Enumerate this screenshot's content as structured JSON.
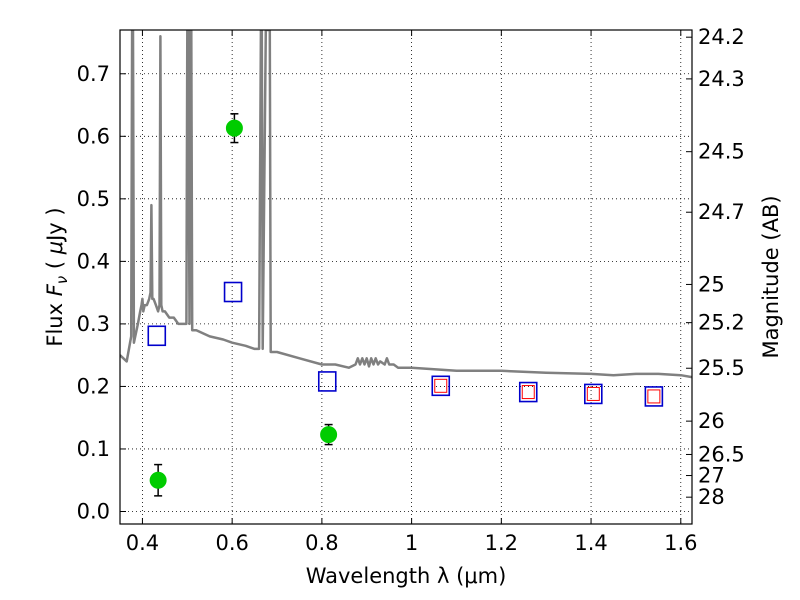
{
  "chart_data": {
    "type": "scatter",
    "title": "",
    "xlabel": "Wavelength  λ (μm)",
    "ylabel_parts": [
      "Flux  ",
      "F",
      "ν",
      "  ( ",
      "μ",
      "Jy )"
    ],
    "y2label": "Magnitude (AB)",
    "xlim": [
      0.35,
      1.625
    ],
    "ylim": [
      -0.02,
      0.77
    ],
    "grid": true,
    "x_ticks": [
      0.4,
      0.6,
      0.8,
      1.0,
      1.2,
      1.4,
      1.6
    ],
    "x_tick_labels": [
      "0.4",
      "0.6",
      "0.8",
      "1",
      "1.2",
      "1.4",
      "1.6"
    ],
    "y_ticks": [
      0.0,
      0.1,
      0.2,
      0.3,
      0.4,
      0.5,
      0.6,
      0.7
    ],
    "y_tick_labels": [
      "0.0",
      "0.1",
      "0.2",
      "0.3",
      "0.4",
      "0.5",
      "0.6",
      "0.7"
    ],
    "mag_ticks": [
      {
        "label": "24.2",
        "flux": 0.7585
      },
      {
        "label": "24.3",
        "flux": 0.6918
      },
      {
        "label": "24.5",
        "flux": 0.5754
      },
      {
        "label": "24.7",
        "flux": 0.4786
      },
      {
        "label": "25",
        "flux": 0.3631
      },
      {
        "label": "25.2",
        "flux": 0.302
      },
      {
        "label": "25.5",
        "flux": 0.2291
      },
      {
        "label": "26",
        "flux": 0.1445
      },
      {
        "label": "26.5",
        "flux": 0.0912
      },
      {
        "label": "27",
        "flux": 0.0575
      },
      {
        "label": "28",
        "flux": 0.0229
      }
    ],
    "series": [
      {
        "kind": "spectrum",
        "color": "#808080",
        "x": [
          0.35,
          0.365,
          0.375,
          0.377,
          0.379,
          0.381,
          0.39,
          0.395,
          0.398,
          0.4,
          0.402,
          0.405,
          0.41,
          0.415,
          0.418,
          0.42,
          0.422,
          0.425,
          0.43,
          0.435,
          0.438,
          0.44,
          0.442,
          0.445,
          0.45,
          0.46,
          0.47,
          0.48,
          0.49,
          0.498,
          0.5,
          0.502,
          0.505,
          0.507,
          0.509,
          0.511,
          0.515,
          0.52,
          0.55,
          0.58,
          0.6,
          0.63,
          0.65,
          0.66,
          0.664,
          0.666,
          0.668,
          0.675,
          0.68,
          0.682,
          0.684,
          0.686,
          0.7,
          0.75,
          0.8,
          0.83,
          0.86,
          0.875,
          0.88,
          0.885,
          0.89,
          0.895,
          0.9,
          0.905,
          0.91,
          0.915,
          0.92,
          0.925,
          0.93,
          0.94,
          0.945,
          0.95,
          0.96,
          0.97,
          0.98,
          0.99,
          1.0,
          1.1,
          1.2,
          1.3,
          1.4,
          1.45,
          1.5,
          1.55,
          1.6,
          1.625
        ],
        "y": [
          0.25,
          0.24,
          0.28,
          0.77,
          0.77,
          0.27,
          0.3,
          0.32,
          0.33,
          0.34,
          0.32,
          0.33,
          0.33,
          0.34,
          0.35,
          0.49,
          0.34,
          0.34,
          0.33,
          0.32,
          0.33,
          0.76,
          0.33,
          0.32,
          0.32,
          0.31,
          0.31,
          0.3,
          0.3,
          0.3,
          0.77,
          0.77,
          0.3,
          0.77,
          0.77,
          0.29,
          0.29,
          0.29,
          0.28,
          0.275,
          0.27,
          0.265,
          0.26,
          0.26,
          0.77,
          0.77,
          0.26,
          0.77,
          0.77,
          0.77,
          0.77,
          0.255,
          0.255,
          0.245,
          0.235,
          0.235,
          0.23,
          0.235,
          0.245,
          0.235,
          0.245,
          0.235,
          0.245,
          0.232,
          0.245,
          0.235,
          0.245,
          0.235,
          0.24,
          0.235,
          0.245,
          0.235,
          0.235,
          0.23,
          0.23,
          0.23,
          0.23,
          0.225,
          0.225,
          0.222,
          0.22,
          0.218,
          0.22,
          0.22,
          0.218,
          0.215
        ]
      },
      {
        "kind": "points",
        "color": "#00cc00",
        "x": [
          0.435,
          0.605,
          0.815
        ],
        "y": [
          0.05,
          0.613,
          0.123
        ],
        "yerr": [
          0.025,
          0.023,
          0.016
        ]
      },
      {
        "kind": "open-squares",
        "color": "#0000cc",
        "x": [
          0.432,
          0.602,
          0.812,
          1.065,
          1.26,
          1.405,
          1.54
        ],
        "y": [
          0.281,
          0.351,
          0.208,
          0.201,
          0.191,
          0.188,
          0.184
        ]
      },
      {
        "kind": "small-open-squares",
        "color": "#ff0000",
        "x": [
          1.065,
          1.26,
          1.405,
          1.54
        ],
        "y": [
          0.201,
          0.191,
          0.188,
          0.184
        ]
      }
    ]
  }
}
